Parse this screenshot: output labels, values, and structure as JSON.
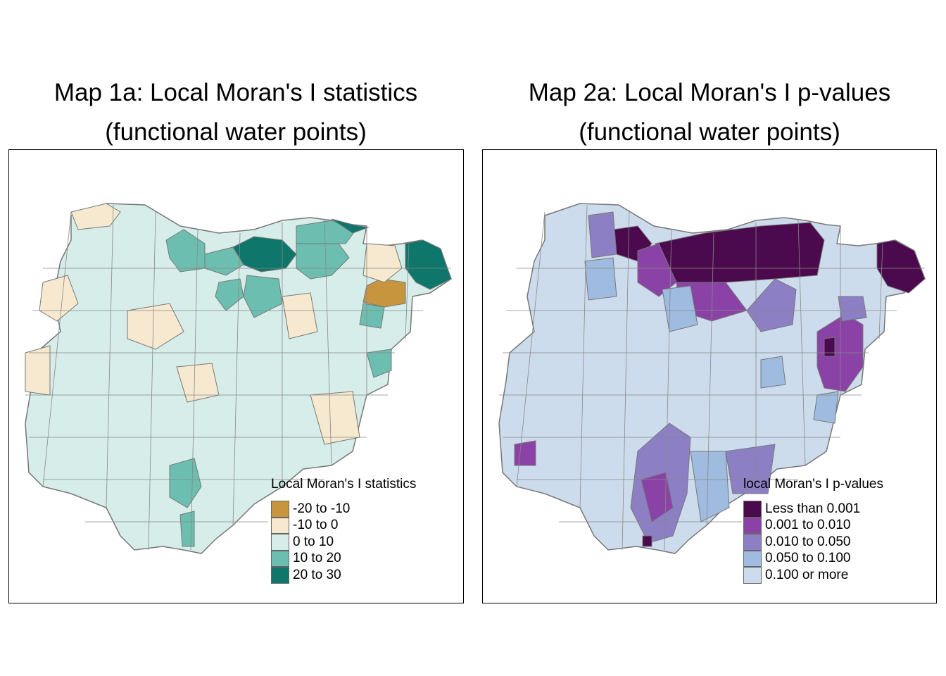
{
  "maps": [
    {
      "title_line1": "Map 1a: Local Moran's I statistics",
      "title_line2": "(functional water points)",
      "legend": {
        "title": "Local Moran's I statistics",
        "items": [
          {
            "label": "-20 to -10",
            "color": "#c8953f"
          },
          {
            "label": "-10 to 0",
            "color": "#f6e9cf"
          },
          {
            "label": "0 to 10",
            "color": "#d6ede9"
          },
          {
            "label": "10 to 20",
            "color": "#6cbfb0"
          },
          {
            "label": "20 to 30",
            "color": "#0e766a"
          }
        ]
      },
      "base_color": "#d6ede9"
    },
    {
      "title_line1": "Map 2a: Local Moran's I p-values",
      "title_line2": "(functional water points)",
      "legend": {
        "title": "local Moran's I p-values",
        "items": [
          {
            "label": "Less than 0.001",
            "color": "#4a0a4d"
          },
          {
            "label": "0.001 to 0.010",
            "color": "#8a42a6"
          },
          {
            "label": "0.010 to 0.050",
            "color": "#8c7fc4"
          },
          {
            "label": "0.050 to 0.100",
            "color": "#9fbbdf"
          },
          {
            "label": "0.100 or more",
            "color": "#cddcec"
          }
        ]
      },
      "base_color": "#cddcec"
    }
  ]
}
